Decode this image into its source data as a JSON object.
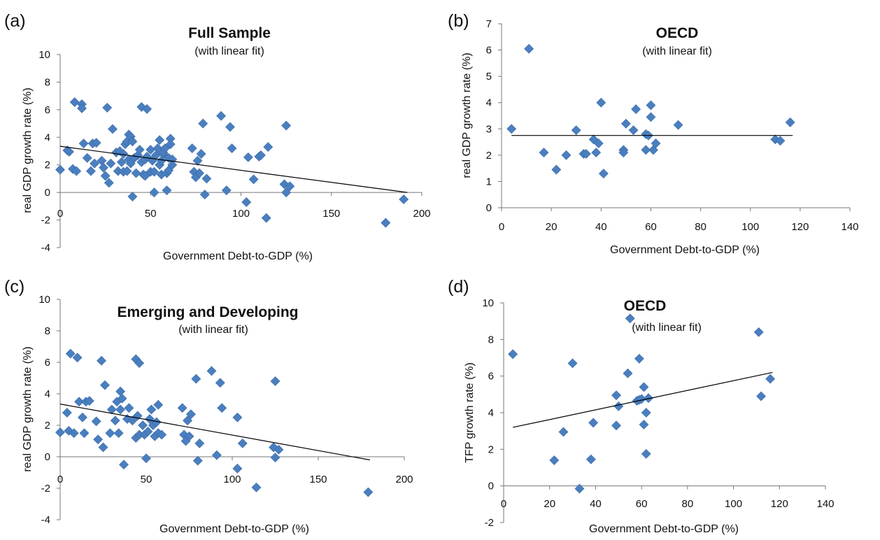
{
  "chart_data": [
    {
      "panel": "(a)",
      "type": "scatter",
      "title": "Full Sample",
      "subtitle": "(with linear fit)",
      "xlabel": "Government Debt-to-GDP (%)",
      "ylabel": "real GDP growth rate (%)",
      "xlim": [
        0,
        200
      ],
      "ylim": [
        -4,
        10
      ],
      "xticks": [
        0,
        50,
        100,
        150,
        200
      ],
      "yticks": [
        -4,
        -2,
        0,
        2,
        4,
        6,
        8,
        10
      ],
      "grid": false,
      "legend": "none",
      "marker_color": "#4a7fbf",
      "fit": {
        "x": [
          0,
          192
        ],
        "y": [
          3.35,
          0.0
        ]
      },
      "points": [
        [
          0,
          1.65
        ],
        [
          4,
          3.05
        ],
        [
          5,
          2.95
        ],
        [
          7,
          1.7
        ],
        [
          8,
          6.55
        ],
        [
          9,
          1.55
        ],
        [
          12,
          6.4
        ],
        [
          12,
          6.1
        ],
        [
          13,
          3.55
        ],
        [
          15,
          2.5
        ],
        [
          17,
          1.55
        ],
        [
          18,
          3.55
        ],
        [
          19,
          2.1
        ],
        [
          20,
          3.6
        ],
        [
          23,
          2.3
        ],
        [
          24,
          1.8
        ],
        [
          25,
          1.2
        ],
        [
          26,
          6.15
        ],
        [
          27,
          0.7
        ],
        [
          28,
          2.1
        ],
        [
          29,
          4.6
        ],
        [
          31,
          2.9
        ],
        [
          32,
          1.55
        ],
        [
          33,
          3.0
        ],
        [
          34,
          2.2
        ],
        [
          35,
          1.5
        ],
        [
          35,
          2.8
        ],
        [
          36,
          3.5
        ],
        [
          37,
          1.55
        ],
        [
          37,
          3.7
        ],
        [
          38,
          2.4
        ],
        [
          38,
          4.2
        ],
        [
          39,
          4.05
        ],
        [
          39,
          2.1
        ],
        [
          40,
          3.7
        ],
        [
          40,
          -0.3
        ],
        [
          41,
          2.5
        ],
        [
          42,
          1.4
        ],
        [
          43,
          2.7
        ],
        [
          44,
          3.1
        ],
        [
          45,
          2.2
        ],
        [
          45,
          6.2
        ],
        [
          46,
          1.3
        ],
        [
          47,
          2.4
        ],
        [
          47,
          1.2
        ],
        [
          48,
          6.05
        ],
        [
          48,
          2.6
        ],
        [
          50,
          1.5
        ],
        [
          50,
          3.1
        ],
        [
          51,
          2.3
        ],
        [
          52,
          0.0
        ],
        [
          52,
          1.5
        ],
        [
          53,
          2.7
        ],
        [
          54,
          3.2
        ],
        [
          55,
          3.8
        ],
        [
          55,
          2.0
        ],
        [
          56,
          2.3
        ],
        [
          56,
          1.3
        ],
        [
          57,
          2.8
        ],
        [
          57,
          2.9
        ],
        [
          58,
          3.2
        ],
        [
          59,
          1.4
        ],
        [
          59,
          0.15
        ],
        [
          60,
          2.5
        ],
        [
          60,
          1.6
        ],
        [
          61,
          3.9
        ],
        [
          61,
          3.5
        ],
        [
          62,
          2.4
        ],
        [
          62,
          2.0
        ],
        [
          73,
          3.2
        ],
        [
          74,
          1.5
        ],
        [
          75,
          1.1
        ],
        [
          76,
          2.3
        ],
        [
          77,
          1.4
        ],
        [
          78,
          2.8
        ],
        [
          79,
          5.0
        ],
        [
          80,
          -0.15
        ],
        [
          81,
          1.0
        ],
        [
          89,
          5.55
        ],
        [
          92,
          0.15
        ],
        [
          94,
          4.75
        ],
        [
          95,
          3.2
        ],
        [
          103,
          -0.7
        ],
        [
          104,
          2.55
        ],
        [
          107,
          0.95
        ],
        [
          110,
          2.6
        ],
        [
          111,
          2.7
        ],
        [
          114,
          -1.85
        ],
        [
          115,
          3.3
        ],
        [
          124,
          0.6
        ],
        [
          125,
          0.0
        ],
        [
          125,
          4.85
        ],
        [
          127,
          0.45
        ],
        [
          180,
          -2.2
        ],
        [
          190,
          -0.5
        ]
      ]
    },
    {
      "panel": "(b)",
      "type": "scatter",
      "title": "OECD",
      "subtitle": "(with linear fit)",
      "xlabel": "Government Debt-to-GDP (%)",
      "ylabel": "real GDP growth rate (%)",
      "xlim": [
        0,
        140
      ],
      "ylim": [
        0,
        7
      ],
      "xticks": [
        0,
        20,
        40,
        60,
        80,
        100,
        120,
        140
      ],
      "yticks": [
        0,
        1,
        2,
        3,
        4,
        5,
        6,
        7
      ],
      "grid": false,
      "legend": "none",
      "marker_color": "#4a7fbf",
      "fit": {
        "x": [
          4,
          117
        ],
        "y": [
          2.75,
          2.75
        ]
      },
      "points": [
        [
          4,
          3.0
        ],
        [
          11,
          6.05
        ],
        [
          17,
          2.1
        ],
        [
          22,
          1.45
        ],
        [
          26,
          2.0
        ],
        [
          30,
          2.95
        ],
        [
          33,
          2.05
        ],
        [
          34,
          2.05
        ],
        [
          37,
          2.6
        ],
        [
          38,
          2.1
        ],
        [
          39,
          2.45
        ],
        [
          40,
          4.0
        ],
        [
          41,
          1.3
        ],
        [
          49,
          2.2
        ],
        [
          49,
          2.1
        ],
        [
          50,
          3.2
        ],
        [
          53,
          2.95
        ],
        [
          54,
          3.75
        ],
        [
          58,
          2.8
        ],
        [
          58,
          2.2
        ],
        [
          59,
          2.75
        ],
        [
          60,
          3.9
        ],
        [
          60,
          3.45
        ],
        [
          61,
          2.2
        ],
        [
          62,
          2.45
        ],
        [
          71,
          3.15
        ],
        [
          110,
          2.6
        ],
        [
          112,
          2.55
        ],
        [
          116,
          3.25
        ]
      ]
    },
    {
      "panel": "(c)",
      "type": "scatter",
      "title": "Emerging and Developing",
      "subtitle": "(with linear fit)",
      "xlabel": "Government Debt-to-GDP (%)",
      "ylabel": "real GDP growth rate (%)",
      "xlim": [
        0,
        200
      ],
      "ylim": [
        -4,
        10
      ],
      "xticks": [
        0,
        50,
        100,
        150,
        200
      ],
      "yticks": [
        -4,
        -2,
        0,
        2,
        4,
        6,
        8,
        10
      ],
      "grid": false,
      "legend": "none",
      "marker_color": "#4a7fbf",
      "fit": {
        "x": [
          0,
          180
        ],
        "y": [
          3.35,
          -0.2
        ]
      },
      "points": [
        [
          0,
          1.55
        ],
        [
          4,
          2.8
        ],
        [
          5,
          1.65
        ],
        [
          6,
          6.55
        ],
        [
          8,
          1.5
        ],
        [
          10,
          6.3
        ],
        [
          11,
          3.5
        ],
        [
          13,
          2.5
        ],
        [
          14,
          1.5
        ],
        [
          15,
          3.5
        ],
        [
          17,
          3.55
        ],
        [
          21,
          2.25
        ],
        [
          22,
          1.1
        ],
        [
          24,
          6.1
        ],
        [
          25,
          0.6
        ],
        [
          26,
          4.55
        ],
        [
          29,
          1.5
        ],
        [
          30,
          3.0
        ],
        [
          32,
          2.3
        ],
        [
          33,
          3.5
        ],
        [
          34,
          1.5
        ],
        [
          35,
          3.0
        ],
        [
          35,
          4.15
        ],
        [
          36,
          3.7
        ],
        [
          37,
          -0.5
        ],
        [
          39,
          2.4
        ],
        [
          40,
          3.1
        ],
        [
          42,
          2.3
        ],
        [
          44,
          6.2
        ],
        [
          44,
          1.2
        ],
        [
          45,
          2.6
        ],
        [
          46,
          5.95
        ],
        [
          46,
          1.4
        ],
        [
          48,
          2.0
        ],
        [
          49,
          1.4
        ],
        [
          50,
          -0.1
        ],
        [
          51,
          1.6
        ],
        [
          52,
          2.4
        ],
        [
          53,
          3.0
        ],
        [
          54,
          2.0
        ],
        [
          55,
          1.3
        ],
        [
          56,
          2.2
        ],
        [
          57,
          1.5
        ],
        [
          57,
          3.3
        ],
        [
          59,
          1.4
        ],
        [
          71,
          3.1
        ],
        [
          72,
          1.4
        ],
        [
          73,
          1.0
        ],
        [
          74,
          2.3
        ],
        [
          75,
          1.3
        ],
        [
          76,
          2.7
        ],
        [
          79,
          4.95
        ],
        [
          80,
          -0.25
        ],
        [
          81,
          0.85
        ],
        [
          88,
          5.45
        ],
        [
          91,
          0.1
        ],
        [
          93,
          4.7
        ],
        [
          94,
          3.1
        ],
        [
          103,
          -0.75
        ],
        [
          103,
          2.5
        ],
        [
          106,
          0.85
        ],
        [
          114,
          -1.95
        ],
        [
          124,
          0.6
        ],
        [
          125,
          -0.05
        ],
        [
          125,
          4.8
        ],
        [
          127,
          0.45
        ],
        [
          179,
          -2.25
        ]
      ]
    },
    {
      "panel": "(d)",
      "type": "scatter",
      "title": "OECD",
      "subtitle": "(with linear fit)",
      "xlabel": "Government Debt-to-GDP (%)",
      "ylabel": "TFP growth rate (%)",
      "xlim": [
        0,
        140
      ],
      "ylim": [
        -2,
        10
      ],
      "xticks": [
        0,
        20,
        40,
        60,
        80,
        100,
        120,
        140
      ],
      "yticks": [
        -2,
        0,
        2,
        4,
        6,
        8,
        10
      ],
      "grid": false,
      "legend": "none",
      "marker_color": "#4a7fbf",
      "fit": {
        "x": [
          4,
          117
        ],
        "y": [
          3.2,
          6.2
        ]
      },
      "points": [
        [
          4,
          7.2
        ],
        [
          22,
          1.4
        ],
        [
          26,
          2.95
        ],
        [
          30,
          6.7
        ],
        [
          33,
          -0.15
        ],
        [
          38,
          1.45
        ],
        [
          39,
          3.45
        ],
        [
          49,
          4.95
        ],
        [
          49,
          3.3
        ],
        [
          50,
          4.35
        ],
        [
          54,
          6.15
        ],
        [
          55,
          9.15
        ],
        [
          58,
          4.65
        ],
        [
          59,
          4.7
        ],
        [
          59,
          6.95
        ],
        [
          60,
          4.75
        ],
        [
          61,
          5.4
        ],
        [
          61,
          3.35
        ],
        [
          62,
          1.75
        ],
        [
          62,
          4.0
        ],
        [
          63,
          4.8
        ],
        [
          111,
          8.4
        ],
        [
          112,
          4.9
        ],
        [
          116,
          5.85
        ]
      ]
    }
  ]
}
